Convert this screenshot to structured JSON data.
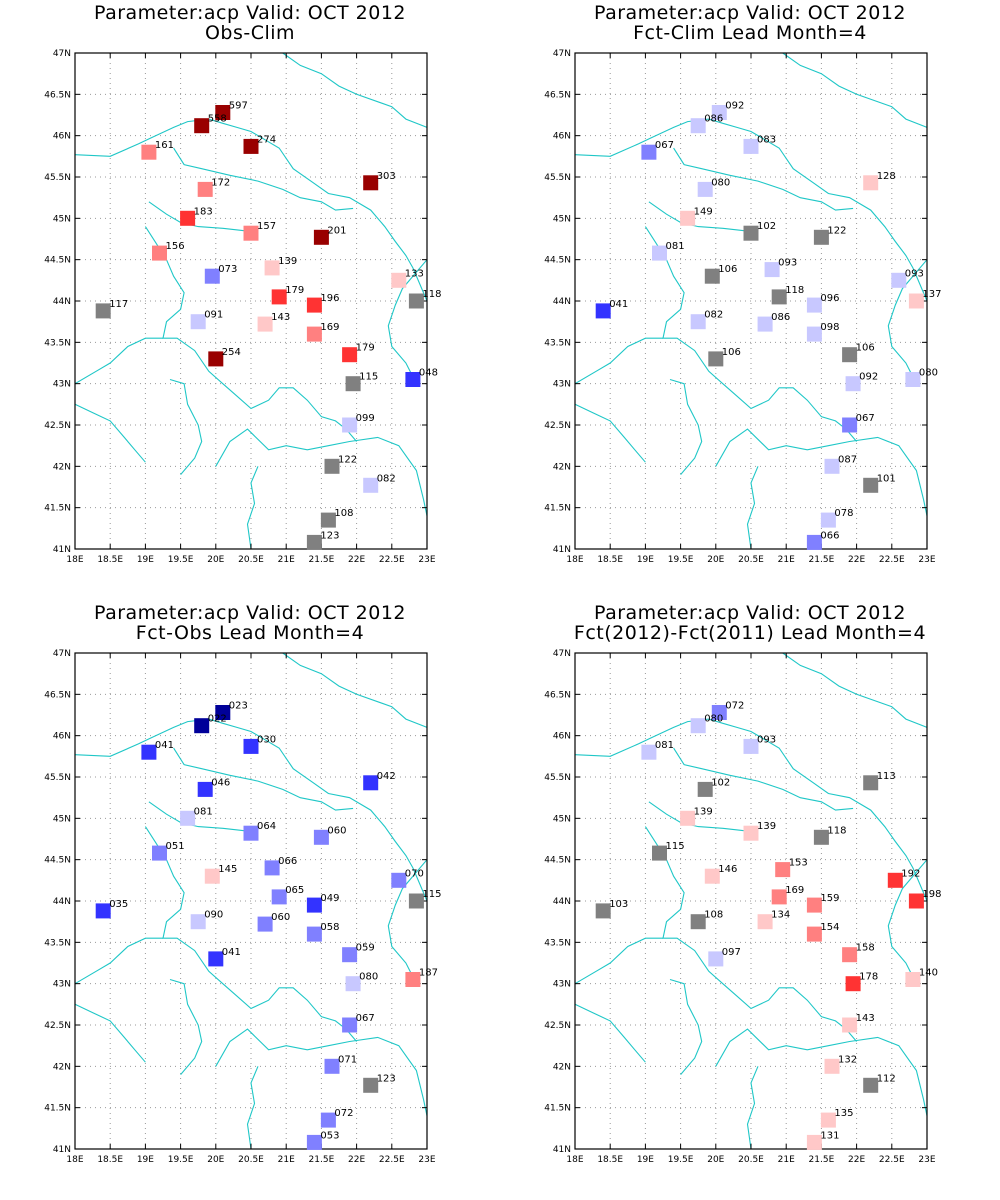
{
  "figure": {
    "x_ticks": [
      "18E",
      "18.5E",
      "19E",
      "19.5E",
      "20E",
      "20.5E",
      "21E",
      "21.5E",
      "22E",
      "22.5E",
      "23E"
    ],
    "y_ticks": [
      "41N",
      "41.5N",
      "42N",
      "42.5N",
      "43N",
      "43.5N",
      "44N",
      "44.5N",
      "45N",
      "45.5N",
      "46N",
      "46.5N",
      "47N"
    ],
    "xlim": [
      18,
      23
    ],
    "ylim": [
      41,
      47
    ],
    "grid": true
  },
  "chart_data": [
    {
      "type": "scatter",
      "title": "Parameter:acp Valid: OCT 2012",
      "subtitle": "Obs-Clim",
      "points": [
        {
          "lon": 20.1,
          "lat": 46.28,
          "label": "597",
          "color": "#990000"
        },
        {
          "lon": 19.8,
          "lat": 46.12,
          "label": "558",
          "color": "#990000"
        },
        {
          "lon": 20.5,
          "lat": 45.87,
          "label": "274",
          "color": "#990000"
        },
        {
          "lon": 19.05,
          "lat": 45.8,
          "label": "161",
          "color": "#ff8080"
        },
        {
          "lon": 22.2,
          "lat": 45.43,
          "label": "303",
          "color": "#990000"
        },
        {
          "lon": 19.85,
          "lat": 45.35,
          "label": "172",
          "color": "#ff8080"
        },
        {
          "lon": 19.6,
          "lat": 45.0,
          "label": "183",
          "color": "#ff3333"
        },
        {
          "lon": 20.5,
          "lat": 44.82,
          "label": "157",
          "color": "#ff8080"
        },
        {
          "lon": 21.5,
          "lat": 44.77,
          "label": "201",
          "color": "#990000"
        },
        {
          "lon": 19.2,
          "lat": 44.58,
          "label": "156",
          "color": "#ff8080"
        },
        {
          "lon": 20.8,
          "lat": 44.4,
          "label": "139",
          "color": "#ffc8c8"
        },
        {
          "lon": 19.95,
          "lat": 44.3,
          "label": "073",
          "color": "#8080ff"
        },
        {
          "lon": 22.6,
          "lat": 44.25,
          "label": "133",
          "color": "#ffc8c8"
        },
        {
          "lon": 20.9,
          "lat": 44.05,
          "label": "179",
          "color": "#ff3333"
        },
        {
          "lon": 22.85,
          "lat": 44.0,
          "label": "118",
          "color": "#808080"
        },
        {
          "lon": 21.4,
          "lat": 43.95,
          "label": "196",
          "color": "#ff3333"
        },
        {
          "lon": 18.4,
          "lat": 43.88,
          "label": "117",
          "color": "#808080"
        },
        {
          "lon": 19.75,
          "lat": 43.75,
          "label": "091",
          "color": "#c8c8ff"
        },
        {
          "lon": 20.7,
          "lat": 43.72,
          "label": "143",
          "color": "#ffc8c8"
        },
        {
          "lon": 21.4,
          "lat": 43.6,
          "label": "169",
          "color": "#ff8080"
        },
        {
          "lon": 21.9,
          "lat": 43.35,
          "label": "179",
          "color": "#ff3333"
        },
        {
          "lon": 20.0,
          "lat": 43.3,
          "label": "254",
          "color": "#990000"
        },
        {
          "lon": 22.8,
          "lat": 43.05,
          "label": "048",
          "color": "#3333ff"
        },
        {
          "lon": 21.95,
          "lat": 43.0,
          "label": "115",
          "color": "#808080"
        },
        {
          "lon": 21.9,
          "lat": 42.5,
          "label": "099",
          "color": "#c8c8ff"
        },
        {
          "lon": 21.65,
          "lat": 42.0,
          "label": "122",
          "color": "#808080"
        },
        {
          "lon": 22.2,
          "lat": 41.77,
          "label": "082",
          "color": "#c8c8ff"
        },
        {
          "lon": 21.6,
          "lat": 41.35,
          "label": "108",
          "color": "#808080"
        },
        {
          "lon": 21.4,
          "lat": 41.08,
          "label": "123",
          "color": "#808080"
        }
      ]
    },
    {
      "type": "scatter",
      "title": "Parameter:acp Valid: OCT 2012",
      "subtitle": "Fct-Clim Lead Month=4",
      "points": [
        {
          "lon": 20.05,
          "lat": 46.28,
          "label": "092",
          "color": "#c8c8ff"
        },
        {
          "lon": 19.75,
          "lat": 46.12,
          "label": "086",
          "color": "#c8c8ff"
        },
        {
          "lon": 20.5,
          "lat": 45.87,
          "label": "083",
          "color": "#c8c8ff"
        },
        {
          "lon": 19.05,
          "lat": 45.8,
          "label": "067",
          "color": "#8080ff"
        },
        {
          "lon": 22.2,
          "lat": 45.43,
          "label": "128",
          "color": "#ffc8c8"
        },
        {
          "lon": 19.85,
          "lat": 45.35,
          "label": "080",
          "color": "#c8c8ff"
        },
        {
          "lon": 19.6,
          "lat": 45.0,
          "label": "149",
          "color": "#ffc8c8"
        },
        {
          "lon": 20.5,
          "lat": 44.82,
          "label": "102",
          "color": "#808080"
        },
        {
          "lon": 21.5,
          "lat": 44.77,
          "label": "122",
          "color": "#808080"
        },
        {
          "lon": 19.2,
          "lat": 44.58,
          "label": "081",
          "color": "#c8c8ff"
        },
        {
          "lon": 20.8,
          "lat": 44.38,
          "label": "093",
          "color": "#c8c8ff"
        },
        {
          "lon": 19.95,
          "lat": 44.3,
          "label": "106",
          "color": "#808080"
        },
        {
          "lon": 22.6,
          "lat": 44.25,
          "label": "093",
          "color": "#c8c8ff"
        },
        {
          "lon": 20.9,
          "lat": 44.05,
          "label": "118",
          "color": "#808080"
        },
        {
          "lon": 22.85,
          "lat": 44.0,
          "label": "137",
          "color": "#ffc8c8"
        },
        {
          "lon": 21.4,
          "lat": 43.95,
          "label": "096",
          "color": "#c8c8ff"
        },
        {
          "lon": 18.4,
          "lat": 43.88,
          "label": "041",
          "color": "#3333ff"
        },
        {
          "lon": 19.75,
          "lat": 43.75,
          "label": "082",
          "color": "#c8c8ff"
        },
        {
          "lon": 20.7,
          "lat": 43.72,
          "label": "086",
          "color": "#c8c8ff"
        },
        {
          "lon": 21.4,
          "lat": 43.6,
          "label": "098",
          "color": "#c8c8ff"
        },
        {
          "lon": 21.9,
          "lat": 43.35,
          "label": "106",
          "color": "#808080"
        },
        {
          "lon": 20.0,
          "lat": 43.3,
          "label": "106",
          "color": "#808080"
        },
        {
          "lon": 22.8,
          "lat": 43.05,
          "label": "080",
          "color": "#c8c8ff"
        },
        {
          "lon": 21.95,
          "lat": 43.0,
          "label": "092",
          "color": "#c8c8ff"
        },
        {
          "lon": 21.9,
          "lat": 42.5,
          "label": "067",
          "color": "#8080ff"
        },
        {
          "lon": 21.65,
          "lat": 42.0,
          "label": "087",
          "color": "#c8c8ff"
        },
        {
          "lon": 22.2,
          "lat": 41.77,
          "label": "101",
          "color": "#808080"
        },
        {
          "lon": 21.6,
          "lat": 41.35,
          "label": "078",
          "color": "#c8c8ff"
        },
        {
          "lon": 21.4,
          "lat": 41.08,
          "label": "066",
          "color": "#8080ff"
        }
      ]
    },
    {
      "type": "scatter",
      "title": "Parameter:acp Valid: OCT 2012",
      "subtitle": "Fct-Obs Lead Month=4",
      "points": [
        {
          "lon": 20.1,
          "lat": 46.28,
          "label": "023",
          "color": "#000099"
        },
        {
          "lon": 19.8,
          "lat": 46.12,
          "label": "022",
          "color": "#000099"
        },
        {
          "lon": 20.5,
          "lat": 45.87,
          "label": "030",
          "color": "#3333ff"
        },
        {
          "lon": 19.05,
          "lat": 45.8,
          "label": "041",
          "color": "#3333ff"
        },
        {
          "lon": 22.2,
          "lat": 45.43,
          "label": "042",
          "color": "#3333ff"
        },
        {
          "lon": 19.85,
          "lat": 45.35,
          "label": "046",
          "color": "#3333ff"
        },
        {
          "lon": 19.6,
          "lat": 45.0,
          "label": "081",
          "color": "#c8c8ff"
        },
        {
          "lon": 20.5,
          "lat": 44.82,
          "label": "064",
          "color": "#8080ff"
        },
        {
          "lon": 21.5,
          "lat": 44.77,
          "label": "060",
          "color": "#8080ff"
        },
        {
          "lon": 19.2,
          "lat": 44.58,
          "label": "051",
          "color": "#8080ff"
        },
        {
          "lon": 20.8,
          "lat": 44.4,
          "label": "066",
          "color": "#8080ff"
        },
        {
          "lon": 19.95,
          "lat": 44.3,
          "label": "145",
          "color": "#ffc8c8"
        },
        {
          "lon": 22.6,
          "lat": 44.25,
          "label": "070",
          "color": "#8080ff"
        },
        {
          "lon": 20.9,
          "lat": 44.05,
          "label": "065",
          "color": "#8080ff"
        },
        {
          "lon": 22.85,
          "lat": 44.0,
          "label": "115",
          "color": "#808080"
        },
        {
          "lon": 21.4,
          "lat": 43.95,
          "label": "049",
          "color": "#3333ff"
        },
        {
          "lon": 18.4,
          "lat": 43.88,
          "label": "035",
          "color": "#3333ff"
        },
        {
          "lon": 19.75,
          "lat": 43.75,
          "label": "090",
          "color": "#c8c8ff"
        },
        {
          "lon": 20.7,
          "lat": 43.72,
          "label": "060",
          "color": "#8080ff"
        },
        {
          "lon": 21.4,
          "lat": 43.6,
          "label": "058",
          "color": "#8080ff"
        },
        {
          "lon": 21.9,
          "lat": 43.35,
          "label": "059",
          "color": "#8080ff"
        },
        {
          "lon": 20.0,
          "lat": 43.3,
          "label": "041",
          "color": "#3333ff"
        },
        {
          "lon": 22.8,
          "lat": 43.05,
          "label": "187",
          "color": "#ff8080"
        },
        {
          "lon": 21.95,
          "lat": 43.0,
          "label": "080",
          "color": "#c8c8ff"
        },
        {
          "lon": 21.9,
          "lat": 42.5,
          "label": "067",
          "color": "#8080ff"
        },
        {
          "lon": 21.65,
          "lat": 42.0,
          "label": "071",
          "color": "#8080ff"
        },
        {
          "lon": 22.2,
          "lat": 41.77,
          "label": "123",
          "color": "#808080"
        },
        {
          "lon": 21.6,
          "lat": 41.35,
          "label": "072",
          "color": "#8080ff"
        },
        {
          "lon": 21.4,
          "lat": 41.08,
          "label": "053",
          "color": "#8080ff"
        }
      ]
    },
    {
      "type": "scatter",
      "title": "Parameter:acp Valid: OCT 2012",
      "subtitle": "Fct(2012)-Fct(2011) Lead Month=4",
      "points": [
        {
          "lon": 20.05,
          "lat": 46.28,
          "label": "072",
          "color": "#8080ff"
        },
        {
          "lon": 19.75,
          "lat": 46.12,
          "label": "080",
          "color": "#c8c8ff"
        },
        {
          "lon": 20.5,
          "lat": 45.87,
          "label": "093",
          "color": "#c8c8ff"
        },
        {
          "lon": 19.05,
          "lat": 45.8,
          "label": "081",
          "color": "#c8c8ff"
        },
        {
          "lon": 22.2,
          "lat": 45.43,
          "label": "113",
          "color": "#808080"
        },
        {
          "lon": 19.85,
          "lat": 45.35,
          "label": "102",
          "color": "#808080"
        },
        {
          "lon": 19.6,
          "lat": 45.0,
          "label": "139",
          "color": "#ffc8c8"
        },
        {
          "lon": 20.5,
          "lat": 44.82,
          "label": "139",
          "color": "#ffc8c8"
        },
        {
          "lon": 21.5,
          "lat": 44.77,
          "label": "118",
          "color": "#808080"
        },
        {
          "lon": 19.2,
          "lat": 44.58,
          "label": "115",
          "color": "#808080"
        },
        {
          "lon": 20.95,
          "lat": 44.38,
          "label": "153",
          "color": "#ff8080"
        },
        {
          "lon": 19.95,
          "lat": 44.3,
          "label": "146",
          "color": "#ffc8c8"
        },
        {
          "lon": 22.55,
          "lat": 44.25,
          "label": "192",
          "color": "#ff3333"
        },
        {
          "lon": 20.9,
          "lat": 44.05,
          "label": "169",
          "color": "#ff8080"
        },
        {
          "lon": 22.85,
          "lat": 44.0,
          "label": "198",
          "color": "#ff3333"
        },
        {
          "lon": 21.4,
          "lat": 43.95,
          "label": "159",
          "color": "#ff8080"
        },
        {
          "lon": 18.4,
          "lat": 43.88,
          "label": "103",
          "color": "#808080"
        },
        {
          "lon": 19.75,
          "lat": 43.75,
          "label": "108",
          "color": "#808080"
        },
        {
          "lon": 20.7,
          "lat": 43.75,
          "label": "134",
          "color": "#ffc8c8"
        },
        {
          "lon": 21.4,
          "lat": 43.6,
          "label": "154",
          "color": "#ff8080"
        },
        {
          "lon": 21.9,
          "lat": 43.35,
          "label": "158",
          "color": "#ff8080"
        },
        {
          "lon": 20.0,
          "lat": 43.3,
          "label": "097",
          "color": "#c8c8ff"
        },
        {
          "lon": 22.8,
          "lat": 43.05,
          "label": "140",
          "color": "#ffc8c8"
        },
        {
          "lon": 21.95,
          "lat": 43.0,
          "label": "178",
          "color": "#ff3333"
        },
        {
          "lon": 21.9,
          "lat": 42.5,
          "label": "143",
          "color": "#ffc8c8"
        },
        {
          "lon": 21.65,
          "lat": 42.0,
          "label": "132",
          "color": "#ffc8c8"
        },
        {
          "lon": 22.2,
          "lat": 41.77,
          "label": "112",
          "color": "#808080"
        },
        {
          "lon": 21.6,
          "lat": 41.35,
          "label": "135",
          "color": "#ffc8c8"
        },
        {
          "lon": 21.4,
          "lat": 41.08,
          "label": "131",
          "color": "#ffc8c8"
        }
      ]
    }
  ]
}
